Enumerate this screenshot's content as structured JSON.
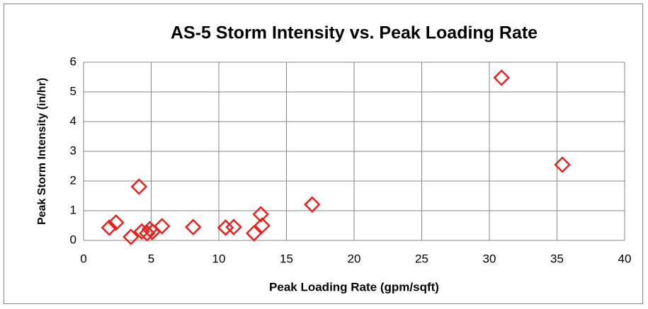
{
  "chart_data": {
    "type": "scatter",
    "title": "AS-5 Storm Intensity vs. Peak Loading Rate",
    "xlabel": "Peak Loading Rate (gpm/sqft)",
    "ylabel": "Peak Storm Intensity (in/hr)",
    "series": [
      {
        "color": "#e8211d",
        "marker": "diamond",
        "x": [
          1.9,
          2.4,
          3.5,
          4.1,
          4.3,
          4.7,
          4.9,
          5.1,
          5.8,
          8.1,
          10.5,
          11.1,
          12.6,
          13.1,
          13.2,
          16.9,
          30.9,
          35.4
        ],
        "values": [
          0.43,
          0.6,
          0.12,
          1.81,
          0.3,
          0.24,
          0.38,
          0.29,
          0.48,
          0.45,
          0.43,
          0.45,
          0.24,
          0.88,
          0.5,
          1.21,
          5.48,
          2.55
        ]
      }
    ],
    "xlim": [
      0,
      40
    ],
    "xticks": [
      0,
      5,
      10,
      15,
      20,
      25,
      30,
      35,
      40
    ],
    "ylim": [
      0,
      6
    ],
    "yticks": [
      0,
      1,
      2,
      3,
      4,
      5,
      6
    ],
    "grid": true
  }
}
